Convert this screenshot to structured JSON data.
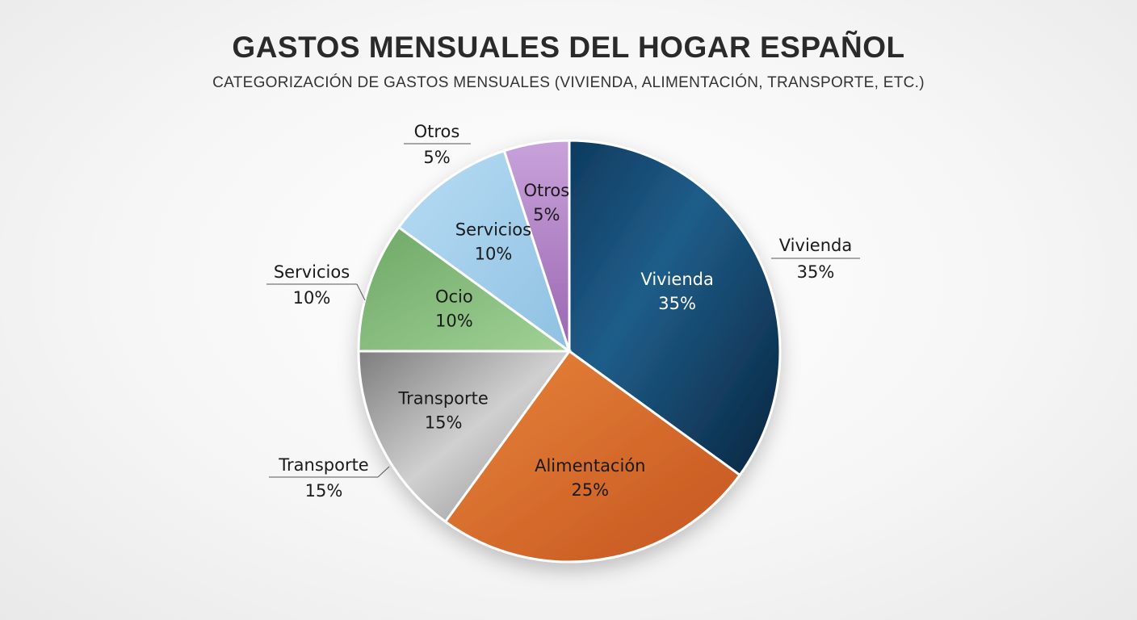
{
  "chart_data": {
    "type": "pie",
    "title": "GASTOS MENSUALES DEL HOGAR ESPAÑOL",
    "subtitle": "CATEGORIZACIÓN DE GASTOS MENSUALES (VIVIENDA, ALIMENTACIÓN, TRANSPORTE, ETC.)",
    "categories": [
      "Vivienda",
      "Alimentación",
      "Transporte",
      "Ocio",
      "Servicios",
      "Otros"
    ],
    "values": [
      35,
      25,
      15,
      10,
      10,
      5
    ],
    "value_labels": [
      "35%",
      "25%",
      "15%",
      "10%",
      "10%",
      "5%"
    ],
    "colors": [
      "#14476e",
      "#dc6d2a",
      "#a9a9a9",
      "#86bd7c",
      "#a6d0ec",
      "#b48ac8"
    ],
    "start": "12 o'clock, clockwise",
    "outer_labels": [
      {
        "label": "Vivienda",
        "value": "35%"
      },
      {
        "label": "Servicios",
        "value": "10%"
      },
      {
        "label": "Transporte",
        "value": "15%"
      },
      {
        "label": "Otros",
        "value": "5%"
      }
    ]
  }
}
